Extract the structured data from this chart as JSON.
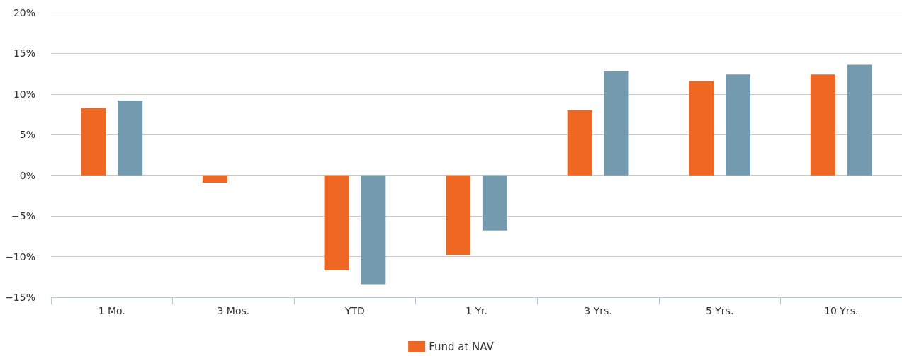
{
  "chart_data": {
    "type": "bar",
    "categories": [
      "1 Mo.",
      "3 Mos.",
      "YTD",
      "1 Yr.",
      "3 Yrs.",
      "5 Yrs.",
      "10 Yrs."
    ],
    "series": [
      {
        "name": "Fund at NAV",
        "color": "#ee6723",
        "values": [
          8.3,
          -0.9,
          -11.7,
          -9.8,
          8.0,
          11.6,
          12.4
        ]
      },
      {
        "color": "#749aaf",
        "values": [
          9.2,
          0,
          -13.4,
          -6.8,
          12.8,
          12.4,
          13.6
        ]
      }
    ],
    "ylim": [
      -15,
      20
    ],
    "yticks": [
      {
        "value": -15,
        "label": "−15%"
      },
      {
        "value": -10,
        "label": "−10%"
      },
      {
        "value": -5,
        "label": "−5%"
      },
      {
        "value": 0,
        "label": "0%"
      },
      {
        "value": 5,
        "label": "5%"
      },
      {
        "value": 10,
        "label": "10%"
      },
      {
        "value": 15,
        "label": "15%"
      },
      {
        "value": 20,
        "label": "20%"
      }
    ],
    "grid": "y",
    "legend": "bottom"
  }
}
